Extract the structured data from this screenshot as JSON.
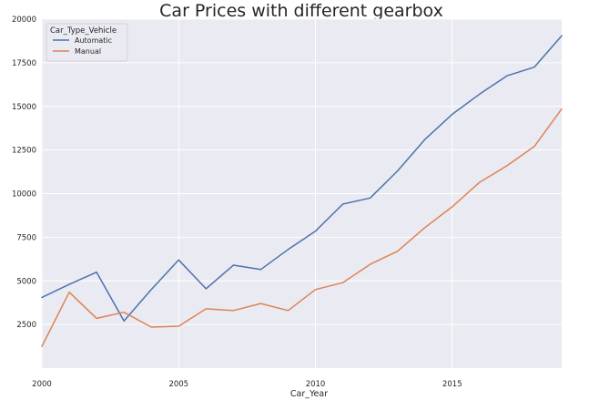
{
  "chart_data": {
    "type": "line",
    "title": "Car Prices with different gearbox",
    "xlabel": "Car_Year",
    "ylabel": "",
    "xlim": [
      2000,
      2019
    ],
    "ylim": [
      0,
      20000
    ],
    "x_ticks": [
      2000,
      2005,
      2010,
      2015
    ],
    "y_ticks": [
      2500,
      5000,
      7500,
      10000,
      12500,
      15000,
      17500,
      20000
    ],
    "grid": true,
    "legend": {
      "title": "Car_Type_Vehicle",
      "placement": "top-left"
    },
    "x": [
      2000,
      2001,
      2002,
      2003,
      2004,
      2005,
      2006,
      2007,
      2008,
      2009,
      2010,
      2011,
      2012,
      2013,
      2014,
      2015,
      2016,
      2017,
      2018,
      2019
    ],
    "series": [
      {
        "name": "Automatic",
        "color": "#4c72b0",
        "values": [
          4050,
          4800,
          5500,
          2700,
          4500,
          6200,
          4550,
          5900,
          5650,
          6800,
          7850,
          9400,
          9750,
          11300,
          13100,
          14550,
          15700,
          16750,
          17250,
          19050
        ]
      },
      {
        "name": "Manual",
        "color": "#dd8452",
        "values": [
          1250,
          4350,
          2850,
          3200,
          2350,
          2400,
          3400,
          3300,
          3700,
          3300,
          4500,
          4900,
          5950,
          6700,
          8050,
          9250,
          10650,
          11600,
          12700,
          14850
        ]
      }
    ]
  }
}
